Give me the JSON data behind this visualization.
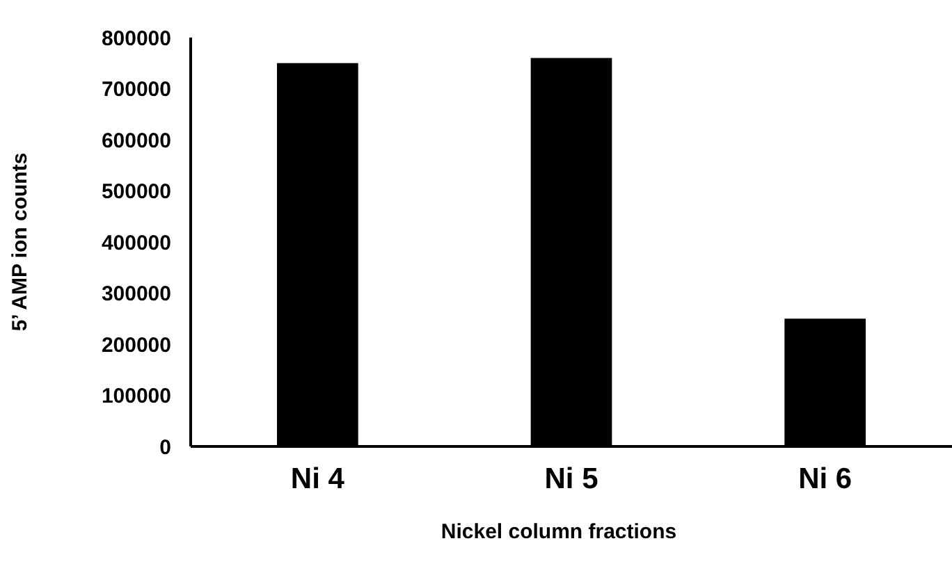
{
  "chart_data": {
    "type": "bar",
    "xlabel": "Nickel column fractions",
    "ylabel": "5’ AMP ion counts",
    "categories": [
      "Ni 4",
      "Ni 5",
      "Ni 6"
    ],
    "values": [
      750000,
      760000,
      250000
    ],
    "color": "#000000",
    "ylim": [
      0,
      800000
    ],
    "yticks": [
      0,
      100000,
      200000,
      300000,
      400000,
      500000,
      600000,
      700000,
      800000
    ],
    "grid": false
  }
}
